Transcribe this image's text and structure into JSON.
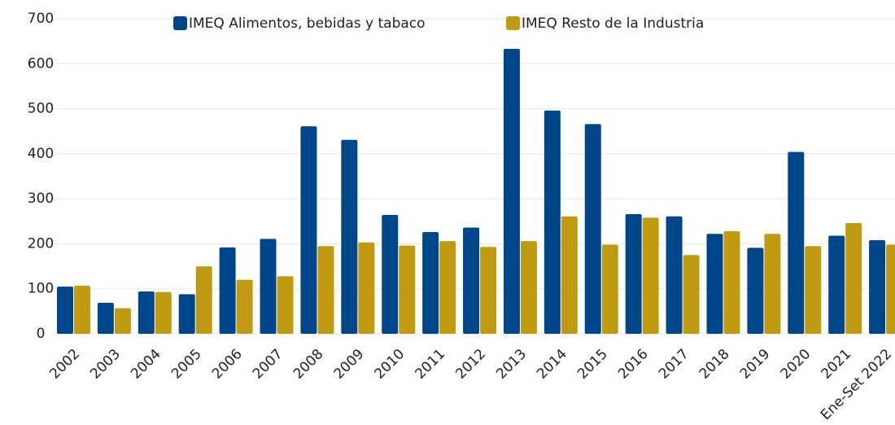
{
  "chart_data": {
    "type": "bar",
    "categories": [
      "2002",
      "2003",
      "2004",
      "2005",
      "2006",
      "2007",
      "2008",
      "2009",
      "2010",
      "2011",
      "2012",
      "2013",
      "2014",
      "2015",
      "2016",
      "2017",
      "2018",
      "2019",
      "2020",
      "2021",
      "Ene-Set 2022"
    ],
    "series": [
      {
        "name": "IMEQ Alimentos, bebidas y tabaco",
        "color": "#00468b",
        "values": [
          105,
          69,
          94,
          88,
          192,
          211,
          461,
          431,
          264,
          226,
          236,
          633,
          496,
          466,
          266,
          261,
          222,
          191,
          404,
          218,
          208
        ]
      },
      {
        "name": "IMEQ Resto de la Industria",
        "color": "#c09b12",
        "values": [
          107,
          57,
          93,
          150,
          120,
          128,
          195,
          203,
          196,
          206,
          193,
          206,
          261,
          198,
          258,
          175,
          228,
          222,
          195,
          246,
          198
        ]
      }
    ],
    "ylim": [
      0,
      700
    ],
    "yticks": [
      0,
      100,
      200,
      300,
      400,
      500,
      600,
      700
    ],
    "grid": true,
    "legend": "top"
  }
}
